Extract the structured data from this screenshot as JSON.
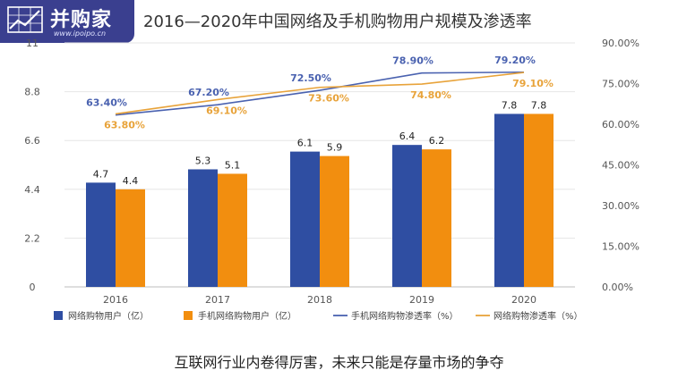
{
  "logo": {
    "text": "并购家",
    "url": "www.ipoipo.cn",
    "icon": "chart-grid-icon"
  },
  "caption": "互联网行业内卷得厉害，未来只能是存量市场的争夺",
  "chart_data": {
    "type": "bar",
    "title": "2016—2020年中国网络及手机购物用户规模及渗透率",
    "categories": [
      "2016",
      "2017",
      "2018",
      "2019",
      "2020"
    ],
    "series": [
      {
        "name": "网络购物用户（亿）",
        "kind": "bar",
        "axis": "left",
        "color": "#2f4ea2",
        "values": [
          4.7,
          5.3,
          6.1,
          6.4,
          7.8
        ],
        "labels": [
          "4.7",
          "5.3",
          "6.1",
          "6.4",
          "7.8"
        ]
      },
      {
        "name": "手机网络购物用户（亿）",
        "kind": "bar",
        "axis": "left",
        "color": "#f28e0f",
        "values": [
          4.4,
          5.1,
          5.9,
          6.2,
          7.8
        ],
        "labels": [
          "4.4",
          "5.1",
          "5.9",
          "6.2",
          "7.8"
        ]
      },
      {
        "name": "手机网络购物渗透率（%）",
        "kind": "line",
        "axis": "right",
        "color": "#4a62b0",
        "values": [
          63.4,
          67.2,
          72.5,
          78.9,
          79.2
        ],
        "labels": [
          "63.40%",
          "67.20%",
          "72.50%",
          "78.90%",
          "79.20%"
        ]
      },
      {
        "name": "网络购物渗透率（%）",
        "kind": "line",
        "axis": "right",
        "color": "#e8a33a",
        "values": [
          63.8,
          69.1,
          73.6,
          74.8,
          79.1
        ],
        "labels": [
          "63.80%",
          "69.10%",
          "73.60%",
          "74.80%",
          "79.10%"
        ]
      }
    ],
    "y_left": {
      "ylim": [
        0,
        11
      ],
      "ticks": [
        0,
        2.2,
        4.4,
        6.6,
        8.8,
        11
      ],
      "tick_labels": [
        "0",
        "2.2",
        "4.4",
        "6.6",
        "8.8",
        "11"
      ]
    },
    "y_right": {
      "ylim": [
        0,
        90
      ],
      "ticks": [
        0,
        15,
        30,
        45,
        60,
        75,
        90
      ],
      "tick_labels": [
        "0.00%",
        "15.00%",
        "30.00%",
        "45.00%",
        "60.00%",
        "75.00%",
        "90.00%"
      ]
    },
    "grid": "horizontal",
    "legend_position": "bottom"
  }
}
